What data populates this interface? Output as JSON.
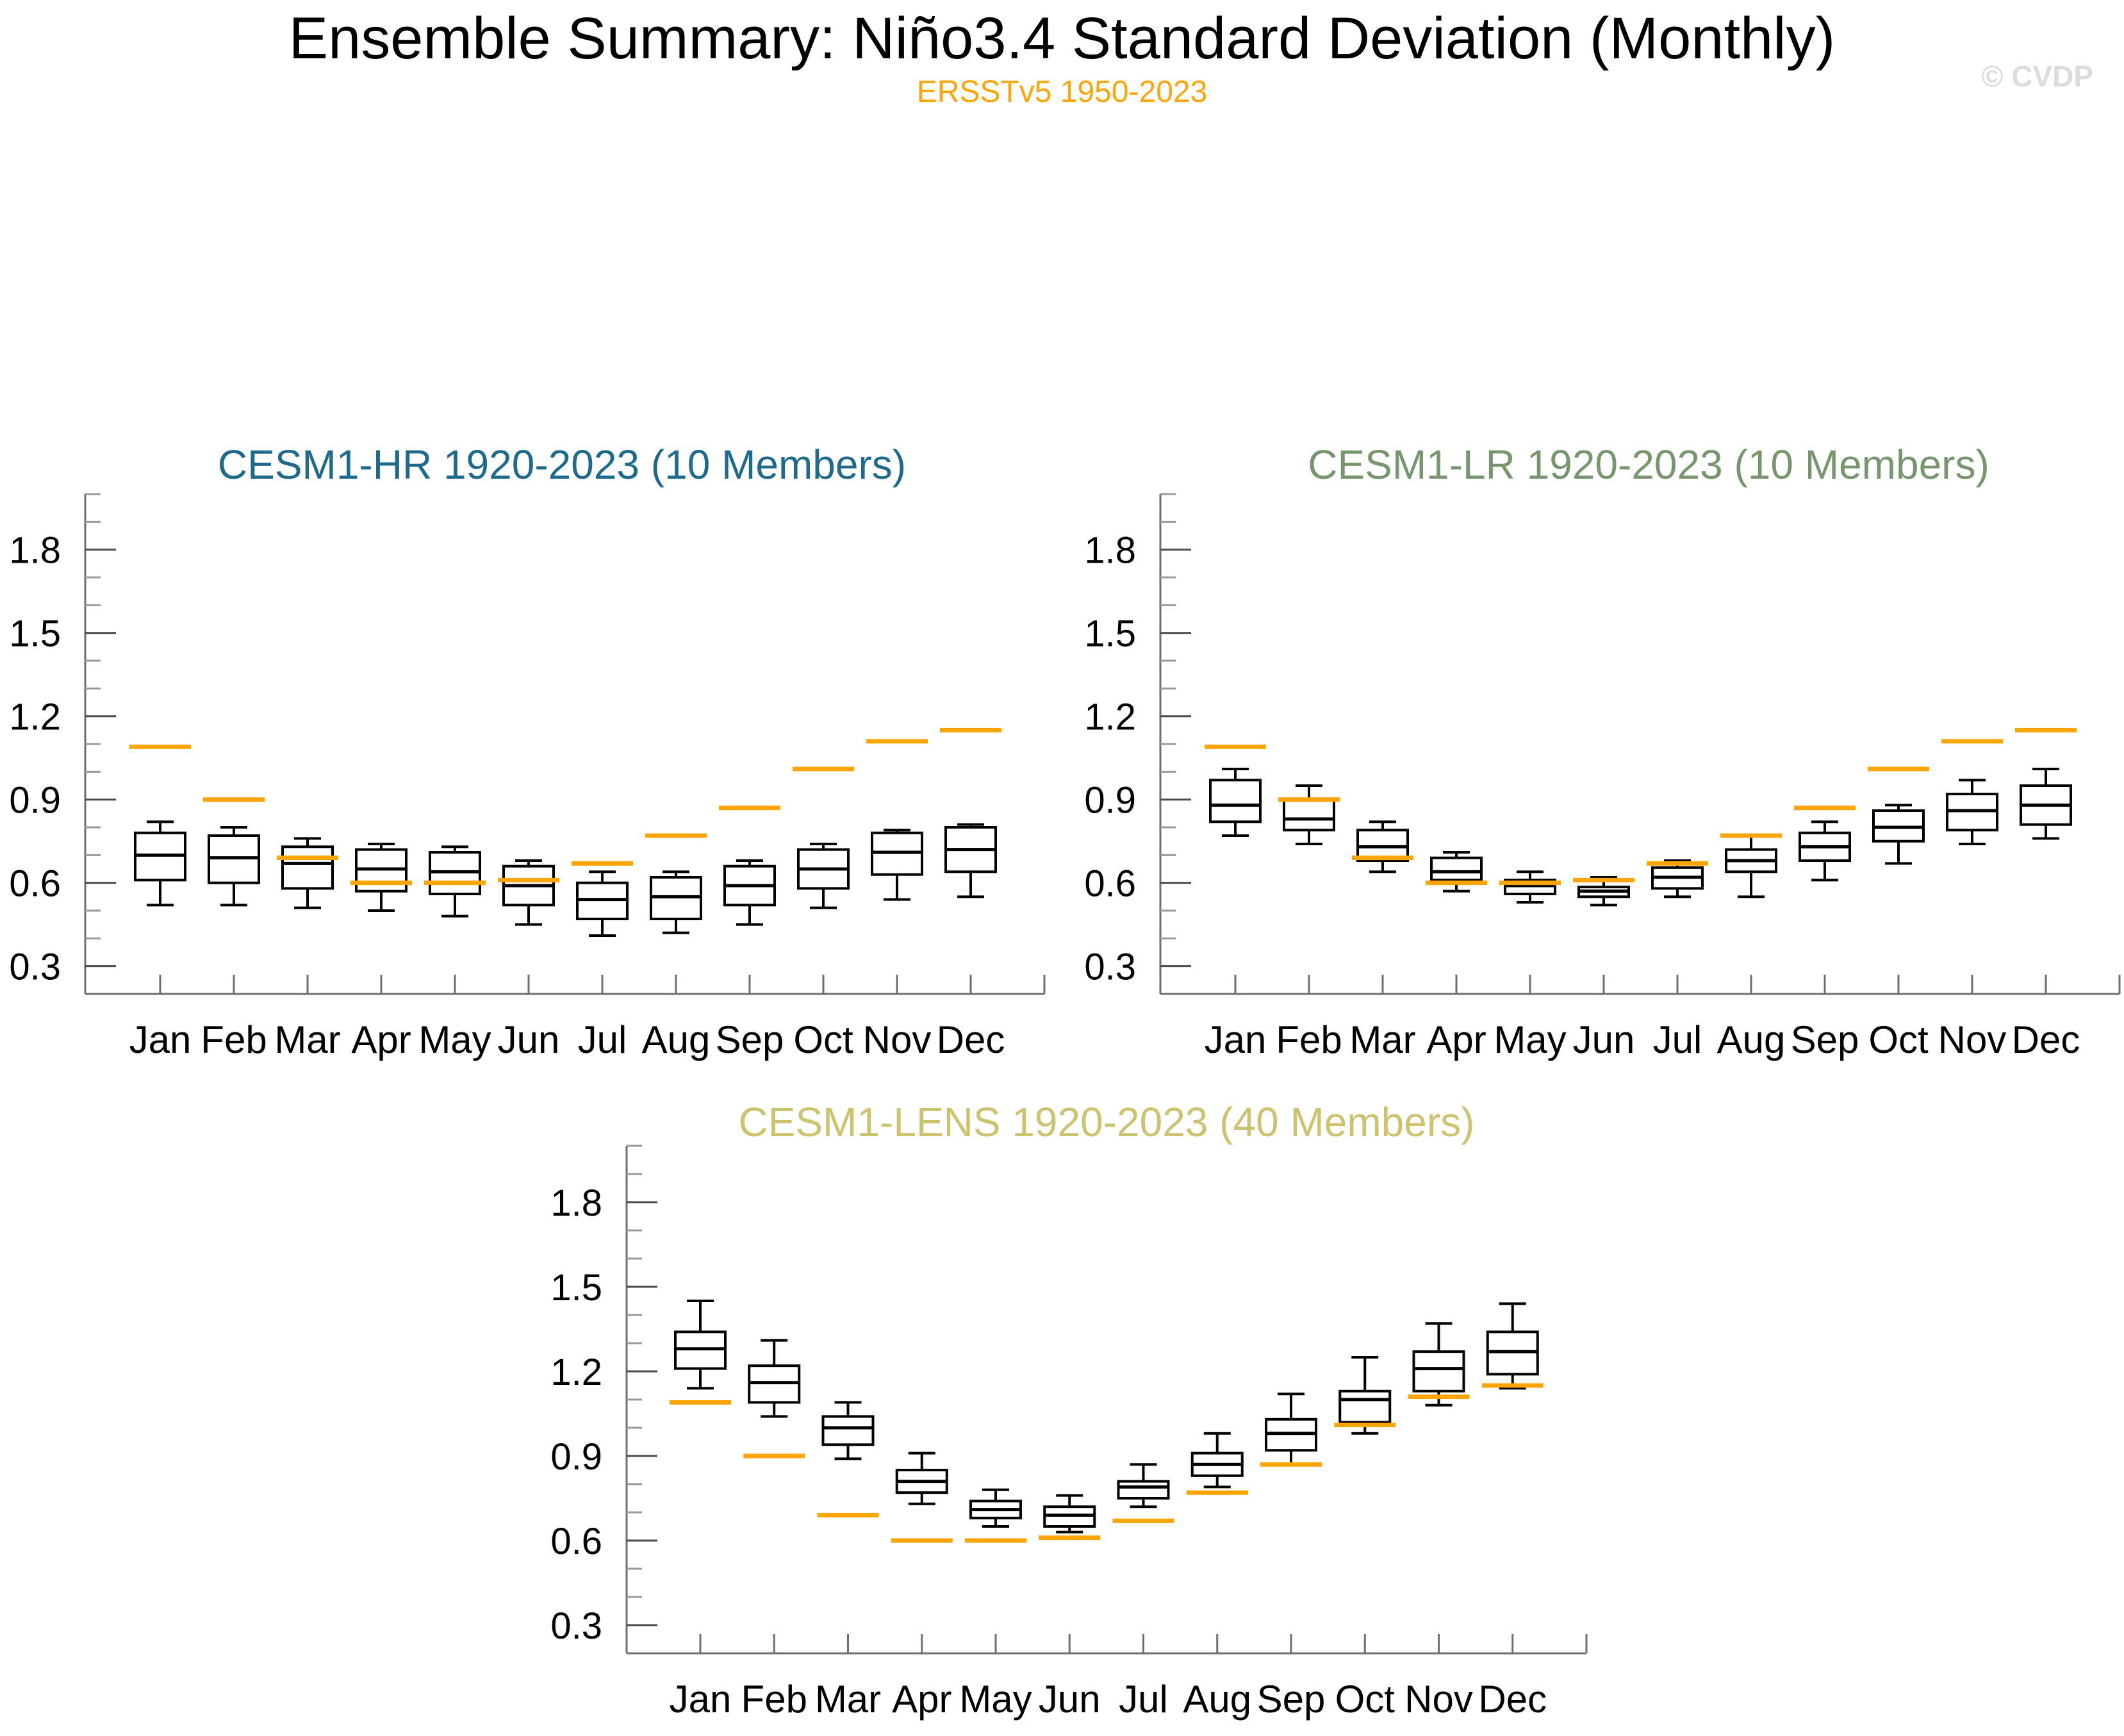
{
  "page": {
    "title": "Ensemble Summary: Niño3.4 Standard Deviation (Monthly)",
    "subtitle": "ERSSTv5 1950-2023",
    "watermark": "© CVDP"
  },
  "colors": {
    "obs_line": "#FFA508",
    "box_stroke": "#000000",
    "spine": "#6E6E6E",
    "major_tick": "#4A4A4A",
    "minor_tick": "#9A9A9A",
    "watermark_gray": "#DCDCDC",
    "hr_title": "#1E6A8C",
    "lr_title": "#77966E",
    "lens_title": "#CDC26E"
  },
  "chart_data": [
    {
      "type": "box",
      "title": "CESM1-HR 1920-2023 (10 Members)",
      "title_color": "#1E6A8C",
      "obs_series_name": "ERSSTv5 1950-2023",
      "categories": [
        "Jan",
        "Feb",
        "Mar",
        "Apr",
        "May",
        "Jun",
        "Jul",
        "Aug",
        "Sep",
        "Oct",
        "Nov",
        "Dec"
      ],
      "ylim": [
        0.2,
        2.0
      ],
      "ytick_labels": [
        "0.3",
        "0.6",
        "0.9",
        "1.2",
        "1.5",
        "1.8"
      ],
      "minor_tick_step": 0.1,
      "grid": false,
      "boxes": [
        {
          "month": "Jan",
          "whisker_low": 0.52,
          "q1": 0.61,
          "median": 0.7,
          "q3": 0.78,
          "whisker_high": 0.82,
          "obs": 1.09
        },
        {
          "month": "Feb",
          "whisker_low": 0.52,
          "q1": 0.6,
          "median": 0.69,
          "q3": 0.77,
          "whisker_high": 0.8,
          "obs": 0.9
        },
        {
          "month": "Mar",
          "whisker_low": 0.51,
          "q1": 0.58,
          "median": 0.67,
          "q3": 0.73,
          "whisker_high": 0.76,
          "obs": 0.69
        },
        {
          "month": "Apr",
          "whisker_low": 0.5,
          "q1": 0.57,
          "median": 0.65,
          "q3": 0.72,
          "whisker_high": 0.74,
          "obs": 0.6
        },
        {
          "month": "May",
          "whisker_low": 0.48,
          "q1": 0.56,
          "median": 0.64,
          "q3": 0.71,
          "whisker_high": 0.73,
          "obs": 0.6
        },
        {
          "month": "Jun",
          "whisker_low": 0.45,
          "q1": 0.52,
          "median": 0.59,
          "q3": 0.66,
          "whisker_high": 0.68,
          "obs": 0.61
        },
        {
          "month": "Jul",
          "whisker_low": 0.41,
          "q1": 0.47,
          "median": 0.54,
          "q3": 0.6,
          "whisker_high": 0.64,
          "obs": 0.67
        },
        {
          "month": "Aug",
          "whisker_low": 0.42,
          "q1": 0.47,
          "median": 0.55,
          "q3": 0.62,
          "whisker_high": 0.64,
          "obs": 0.77
        },
        {
          "month": "Sep",
          "whisker_low": 0.45,
          "q1": 0.52,
          "median": 0.59,
          "q3": 0.66,
          "whisker_high": 0.68,
          "obs": 0.87
        },
        {
          "month": "Oct",
          "whisker_low": 0.51,
          "q1": 0.58,
          "median": 0.65,
          "q3": 0.72,
          "whisker_high": 0.74,
          "obs": 1.01
        },
        {
          "month": "Nov",
          "whisker_low": 0.54,
          "q1": 0.63,
          "median": 0.71,
          "q3": 0.78,
          "whisker_high": 0.79,
          "obs": 1.11
        },
        {
          "month": "Dec",
          "whisker_low": 0.55,
          "q1": 0.64,
          "median": 0.72,
          "q3": 0.8,
          "whisker_high": 0.81,
          "obs": 1.15
        }
      ]
    },
    {
      "type": "box",
      "title": "CESM1-LR 1920-2023 (10 Members)",
      "title_color": "#77966E",
      "obs_series_name": "ERSSTv5 1950-2023",
      "categories": [
        "Jan",
        "Feb",
        "Mar",
        "Apr",
        "May",
        "Jun",
        "Jul",
        "Aug",
        "Sep",
        "Oct",
        "Nov",
        "Dec"
      ],
      "ylim": [
        0.2,
        2.0
      ],
      "ytick_labels": [
        "0.3",
        "0.6",
        "0.9",
        "1.2",
        "1.5",
        "1.8"
      ],
      "minor_tick_step": 0.1,
      "grid": false,
      "boxes": [
        {
          "month": "Jan",
          "whisker_low": 0.77,
          "q1": 0.82,
          "median": 0.88,
          "q3": 0.97,
          "whisker_high": 1.01,
          "obs": 1.09
        },
        {
          "month": "Feb",
          "whisker_low": 0.74,
          "q1": 0.79,
          "median": 0.83,
          "q3": 0.9,
          "whisker_high": 0.95,
          "obs": 0.9
        },
        {
          "month": "Mar",
          "whisker_low": 0.64,
          "q1": 0.68,
          "median": 0.73,
          "q3": 0.79,
          "whisker_high": 0.82,
          "obs": 0.69
        },
        {
          "month": "Apr",
          "whisker_low": 0.57,
          "q1": 0.61,
          "median": 0.64,
          "q3": 0.69,
          "whisker_high": 0.71,
          "obs": 0.6
        },
        {
          "month": "May",
          "whisker_low": 0.53,
          "q1": 0.56,
          "median": 0.59,
          "q3": 0.61,
          "whisker_high": 0.64,
          "obs": 0.6
        },
        {
          "month": "Jun",
          "whisker_low": 0.52,
          "q1": 0.55,
          "median": 0.57,
          "q3": 0.585,
          "whisker_high": 0.62,
          "obs": 0.61
        },
        {
          "month": "Jul",
          "whisker_low": 0.55,
          "q1": 0.58,
          "median": 0.62,
          "q3": 0.655,
          "whisker_high": 0.68,
          "obs": 0.67
        },
        {
          "month": "Aug",
          "whisker_low": 0.55,
          "q1": 0.64,
          "median": 0.68,
          "q3": 0.72,
          "whisker_high": 0.77,
          "obs": 0.77
        },
        {
          "month": "Sep",
          "whisker_low": 0.61,
          "q1": 0.68,
          "median": 0.73,
          "q3": 0.78,
          "whisker_high": 0.82,
          "obs": 0.87
        },
        {
          "month": "Oct",
          "whisker_low": 0.67,
          "q1": 0.75,
          "median": 0.8,
          "q3": 0.86,
          "whisker_high": 0.88,
          "obs": 1.01
        },
        {
          "month": "Nov",
          "whisker_low": 0.74,
          "q1": 0.79,
          "median": 0.86,
          "q3": 0.92,
          "whisker_high": 0.97,
          "obs": 1.11
        },
        {
          "month": "Dec",
          "whisker_low": 0.76,
          "q1": 0.81,
          "median": 0.88,
          "q3": 0.95,
          "whisker_high": 1.01,
          "obs": 1.15
        }
      ]
    },
    {
      "type": "box",
      "title": "CESM1-LENS 1920-2023 (40 Members)",
      "title_color": "#CDC26E",
      "obs_series_name": "ERSSTv5 1950-2023",
      "categories": [
        "Jan",
        "Feb",
        "Mar",
        "Apr",
        "May",
        "Jun",
        "Jul",
        "Aug",
        "Sep",
        "Oct",
        "Nov",
        "Dec"
      ],
      "ylim": [
        0.2,
        2.0
      ],
      "ytick_labels": [
        "0.3",
        "0.6",
        "0.9",
        "1.2",
        "1.5",
        "1.8"
      ],
      "minor_tick_step": 0.1,
      "grid": false,
      "boxes": [
        {
          "month": "Jan",
          "whisker_low": 1.14,
          "q1": 1.21,
          "median": 1.28,
          "q3": 1.34,
          "whisker_high": 1.45,
          "obs": 1.09
        },
        {
          "month": "Feb",
          "whisker_low": 1.04,
          "q1": 1.09,
          "median": 1.16,
          "q3": 1.22,
          "whisker_high": 1.31,
          "obs": 0.9
        },
        {
          "month": "Mar",
          "whisker_low": 0.89,
          "q1": 0.94,
          "median": 1.0,
          "q3": 1.04,
          "whisker_high": 1.09,
          "obs": 0.69
        },
        {
          "month": "Apr",
          "whisker_low": 0.73,
          "q1": 0.77,
          "median": 0.81,
          "q3": 0.85,
          "whisker_high": 0.91,
          "obs": 0.6
        },
        {
          "month": "May",
          "whisker_low": 0.65,
          "q1": 0.68,
          "median": 0.71,
          "q3": 0.74,
          "whisker_high": 0.78,
          "obs": 0.6
        },
        {
          "month": "Jun",
          "whisker_low": 0.63,
          "q1": 0.65,
          "median": 0.69,
          "q3": 0.72,
          "whisker_high": 0.76,
          "obs": 0.61
        },
        {
          "month": "Jul",
          "whisker_low": 0.72,
          "q1": 0.75,
          "median": 0.79,
          "q3": 0.81,
          "whisker_high": 0.87,
          "obs": 0.67
        },
        {
          "month": "Aug",
          "whisker_low": 0.79,
          "q1": 0.83,
          "median": 0.87,
          "q3": 0.91,
          "whisker_high": 0.98,
          "obs": 0.77
        },
        {
          "month": "Sep",
          "whisker_low": 0.87,
          "q1": 0.92,
          "median": 0.98,
          "q3": 1.03,
          "whisker_high": 1.12,
          "obs": 0.87
        },
        {
          "month": "Oct",
          "whisker_low": 0.98,
          "q1": 1.02,
          "median": 1.1,
          "q3": 1.13,
          "whisker_high": 1.25,
          "obs": 1.01
        },
        {
          "month": "Nov",
          "whisker_low": 1.08,
          "q1": 1.13,
          "median": 1.21,
          "q3": 1.27,
          "whisker_high": 1.37,
          "obs": 1.11
        },
        {
          "month": "Dec",
          "whisker_low": 1.14,
          "q1": 1.19,
          "median": 1.27,
          "q3": 1.34,
          "whisker_high": 1.44,
          "obs": 1.15
        }
      ]
    }
  ]
}
